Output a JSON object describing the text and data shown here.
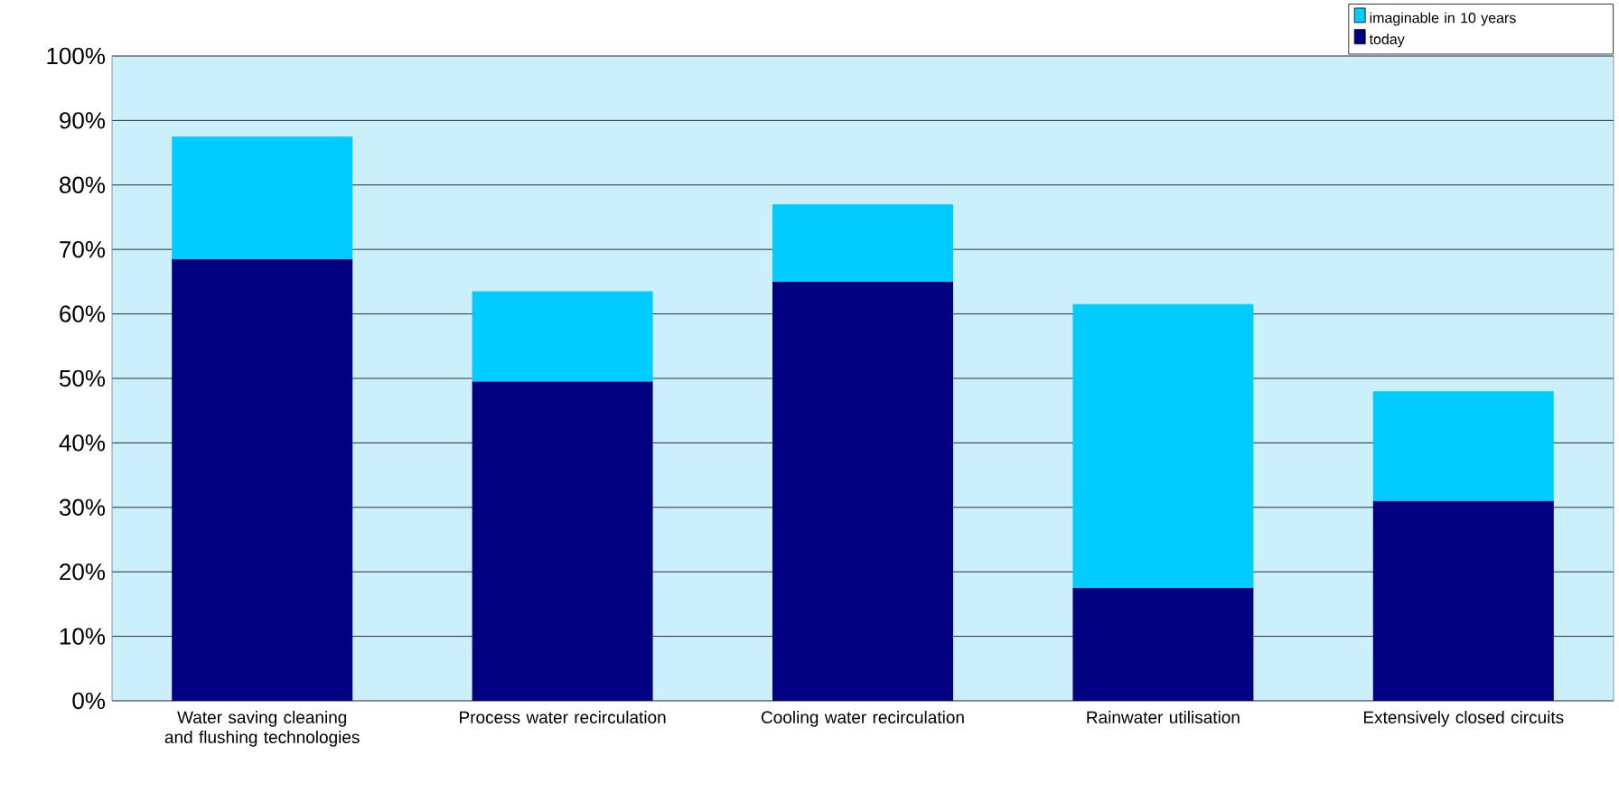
{
  "chart_data": {
    "type": "bar",
    "stacked": true,
    "categories": [
      "Water saving cleaning and flushing technologies",
      "Process water recirculation",
      "Cooling water recirculation",
      "Rainwater utilisation",
      "Extensively closed circuits"
    ],
    "series": [
      {
        "name": "today",
        "color": "#000080",
        "values": [
          68.5,
          49.5,
          65,
          17.5,
          31
        ]
      },
      {
        "name": "imaginable in 10 years",
        "color": "#00ccff",
        "values": [
          19,
          14,
          12,
          44,
          17
        ]
      }
    ],
    "ylim": [
      0,
      100
    ],
    "yticks": [
      {
        "value": 0,
        "label": "0%"
      },
      {
        "value": 10,
        "label": "10%"
      },
      {
        "value": 20,
        "label": "20%"
      },
      {
        "value": 30,
        "label": "30%"
      },
      {
        "value": 40,
        "label": "40%"
      },
      {
        "value": 50,
        "label": "50%"
      },
      {
        "value": 60,
        "label": "60%"
      },
      {
        "value": 70,
        "label": "70%"
      },
      {
        "value": 80,
        "label": "80%"
      },
      {
        "value": 90,
        "label": "90%"
      },
      {
        "value": 100,
        "label": "100%"
      }
    ],
    "grid": "y",
    "legend": "top right"
  }
}
